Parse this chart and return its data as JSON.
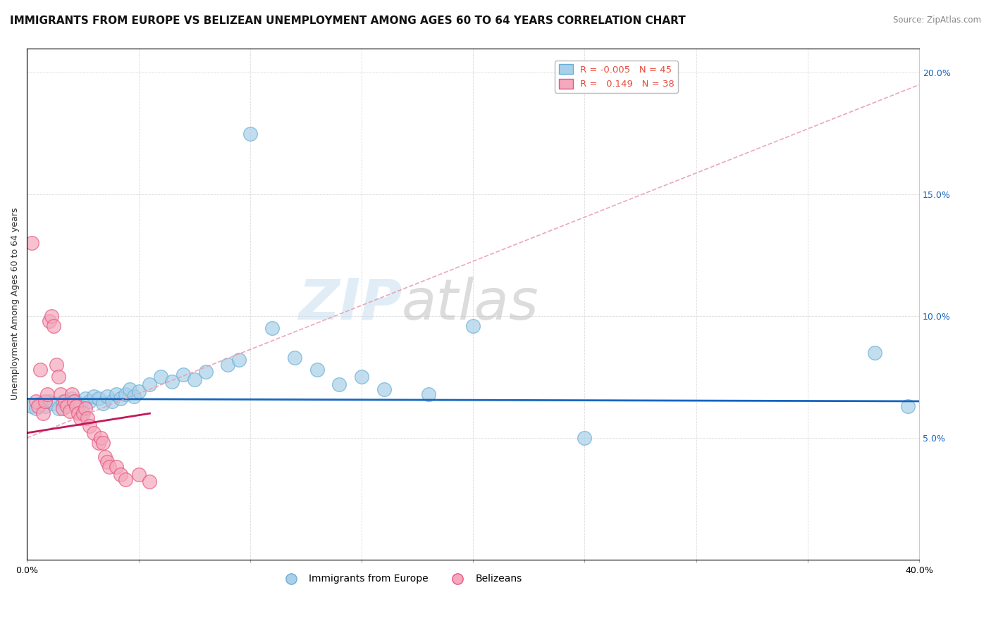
{
  "title": "IMMIGRANTS FROM EUROPE VS BELIZEAN UNEMPLOYMENT AMONG AGES 60 TO 64 YEARS CORRELATION CHART",
  "source": "Source: ZipAtlas.com",
  "ylabel": "Unemployment Among Ages 60 to 64 years",
  "xlim": [
    0.0,
    0.4
  ],
  "ylim": [
    0.0,
    0.21
  ],
  "x_ticks": [
    0.0,
    0.05,
    0.1,
    0.15,
    0.2,
    0.25,
    0.3,
    0.35,
    0.4
  ],
  "y_ticks": [
    0.0,
    0.05,
    0.1,
    0.15,
    0.2
  ],
  "watermark_part1": "ZIP",
  "watermark_part2": "atlas",
  "series_blue": {
    "color": "#a8d0e8",
    "edge_color": "#6baed6",
    "trendline_color": "#1565C0",
    "x": [
      0.002,
      0.004,
      0.006,
      0.008,
      0.01,
      0.012,
      0.014,
      0.016,
      0.018,
      0.02,
      0.022,
      0.024,
      0.026,
      0.028,
      0.03,
      0.032,
      0.034,
      0.036,
      0.038,
      0.04,
      0.042,
      0.044,
      0.046,
      0.048,
      0.05,
      0.055,
      0.06,
      0.065,
      0.07,
      0.075,
      0.08,
      0.09,
      0.095,
      0.1,
      0.11,
      0.12,
      0.13,
      0.14,
      0.15,
      0.16,
      0.18,
      0.2,
      0.25,
      0.38,
      0.395
    ],
    "y": [
      0.063,
      0.062,
      0.064,
      0.063,
      0.065,
      0.064,
      0.062,
      0.065,
      0.064,
      0.066,
      0.065,
      0.063,
      0.066,
      0.065,
      0.067,
      0.066,
      0.064,
      0.067,
      0.065,
      0.068,
      0.066,
      0.068,
      0.07,
      0.067,
      0.069,
      0.072,
      0.075,
      0.073,
      0.076,
      0.074,
      0.077,
      0.08,
      0.082,
      0.175,
      0.095,
      0.083,
      0.078,
      0.072,
      0.075,
      0.07,
      0.068,
      0.096,
      0.05,
      0.085,
      0.063
    ],
    "trendline_y_at_0": 0.066,
    "trendline_y_at_40": 0.065
  },
  "series_pink": {
    "color": "#f4a9bc",
    "edge_color": "#e75480",
    "trendline_color": "#c2185b",
    "trendline_dash_color": "#e8a0b0",
    "x": [
      0.002,
      0.004,
      0.005,
      0.006,
      0.007,
      0.008,
      0.009,
      0.01,
      0.011,
      0.012,
      0.013,
      0.014,
      0.015,
      0.016,
      0.017,
      0.018,
      0.019,
      0.02,
      0.021,
      0.022,
      0.023,
      0.024,
      0.025,
      0.026,
      0.027,
      0.028,
      0.03,
      0.032,
      0.033,
      0.034,
      0.035,
      0.036,
      0.037,
      0.04,
      0.042,
      0.044,
      0.05,
      0.055
    ],
    "y": [
      0.13,
      0.065,
      0.063,
      0.078,
      0.06,
      0.065,
      0.068,
      0.098,
      0.1,
      0.096,
      0.08,
      0.075,
      0.068,
      0.062,
      0.065,
      0.063,
      0.061,
      0.068,
      0.065,
      0.063,
      0.06,
      0.058,
      0.06,
      0.062,
      0.058,
      0.055,
      0.052,
      0.048,
      0.05,
      0.048,
      0.042,
      0.04,
      0.038,
      0.038,
      0.035,
      0.033,
      0.035,
      0.032
    ],
    "trendline_x_start": 0.0,
    "trendline_y_start": 0.05,
    "trendline_x_end": 0.4,
    "trendline_y_end": 0.195
  },
  "background_color": "#ffffff",
  "plot_bg_color": "#ffffff",
  "grid_color": "#cccccc",
  "title_fontsize": 11,
  "axis_label_fontsize": 9,
  "tick_fontsize": 9
}
